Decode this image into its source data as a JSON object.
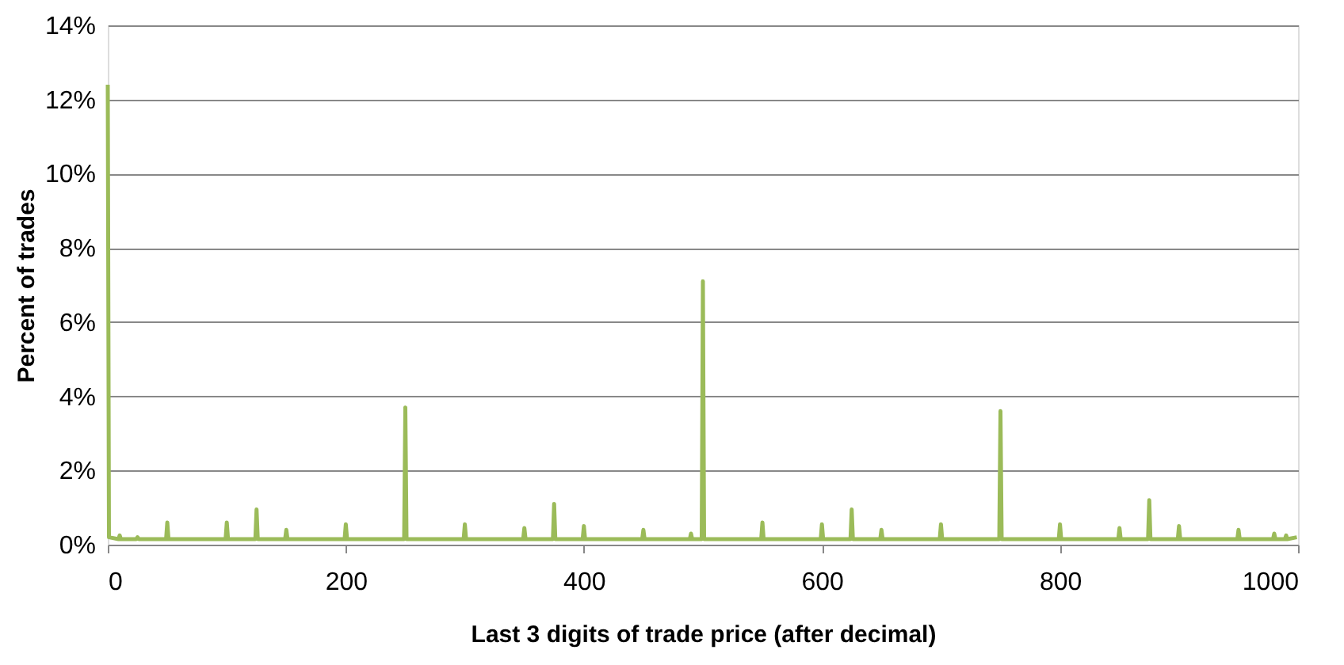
{
  "chart_data": {
    "type": "line",
    "xlabel": "Last 3 digits of trade price (after decimal)",
    "ylabel": "Percent of trades",
    "x": [
      0,
      1,
      9,
      10,
      11,
      24,
      25,
      26,
      49,
      50,
      51,
      99,
      100,
      101,
      124,
      125,
      126,
      149,
      150,
      151,
      199,
      200,
      201,
      249,
      250,
      251,
      299,
      300,
      301,
      349,
      350,
      351,
      374,
      375,
      376,
      399,
      400,
      401,
      449,
      450,
      451,
      489,
      490,
      491,
      499,
      500,
      501,
      549,
      550,
      551,
      599,
      600,
      601,
      624,
      625,
      626,
      649,
      650,
      651,
      699,
      700,
      701,
      749,
      750,
      751,
      799,
      800,
      801,
      849,
      850,
      851,
      874,
      875,
      876,
      899,
      900,
      901,
      949,
      950,
      951,
      979,
      980,
      981,
      989,
      990,
      991,
      999
    ],
    "series": [
      {
        "color": "#9bbb59",
        "values": [
          12.4,
          0.2,
          0.15,
          0.25,
          0.15,
          0.15,
          0.2,
          0.15,
          0.15,
          0.6,
          0.15,
          0.15,
          0.6,
          0.15,
          0.15,
          0.95,
          0.15,
          0.15,
          0.4,
          0.15,
          0.15,
          0.55,
          0.15,
          0.15,
          3.7,
          0.15,
          0.15,
          0.55,
          0.15,
          0.15,
          0.45,
          0.15,
          0.15,
          1.1,
          0.15,
          0.15,
          0.5,
          0.15,
          0.15,
          0.4,
          0.15,
          0.15,
          0.3,
          0.15,
          0.15,
          7.1,
          0.15,
          0.15,
          0.6,
          0.15,
          0.15,
          0.55,
          0.15,
          0.15,
          0.95,
          0.15,
          0.15,
          0.4,
          0.15,
          0.15,
          0.55,
          0.15,
          0.15,
          3.6,
          0.15,
          0.15,
          0.55,
          0.15,
          0.15,
          0.45,
          0.15,
          0.15,
          1.2,
          0.15,
          0.15,
          0.5,
          0.15,
          0.15,
          0.4,
          0.15,
          0.15,
          0.3,
          0.15,
          0.15,
          0.25,
          0.15,
          0.2
        ]
      }
    ],
    "xlim": [
      0,
      1000
    ],
    "xticks": [
      0,
      200,
      400,
      600,
      800,
      1000
    ],
    "ylim": [
      0,
      14
    ],
    "yticks": [
      {
        "value": 0,
        "label": "0%"
      },
      {
        "value": 2,
        "label": "2%"
      },
      {
        "value": 4,
        "label": "4%"
      },
      {
        "value": 6,
        "label": "6%"
      },
      {
        "value": 8,
        "label": "8%"
      },
      {
        "value": 10,
        "label": "10%"
      },
      {
        "value": 12,
        "label": "12%"
      },
      {
        "value": 14,
        "label": "14%"
      }
    ],
    "grid": "y",
    "marker": "none",
    "line_style": "solid"
  }
}
